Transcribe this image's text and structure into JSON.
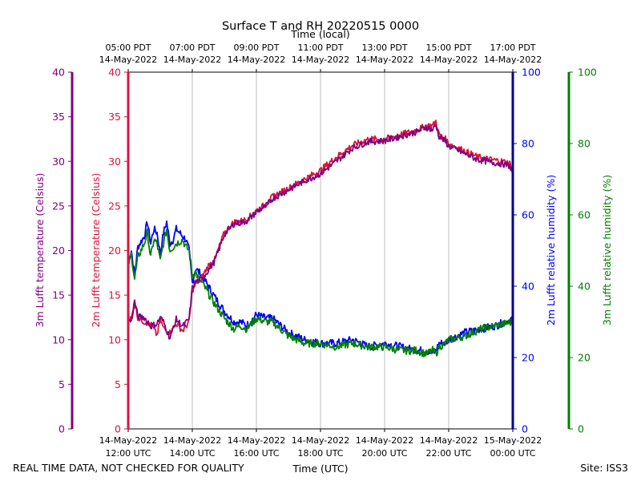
{
  "chart_data": {
    "type": "line",
    "title": "Surface T and RH 20220515 0000",
    "top_axis_label": "Time (local)",
    "bottom_axis_label": "Time (UTC)",
    "x_unit": "hours since 14-May-2022 12:00 UTC",
    "xlim": [
      0,
      12
    ],
    "top_ticks": [
      {
        "x": 0,
        "l1": "05:00 PDT",
        "l2": "14-May-2022"
      },
      {
        "x": 2,
        "l1": "07:00 PDT",
        "l2": "14-May-2022"
      },
      {
        "x": 4,
        "l1": "09:00 PDT",
        "l2": "14-May-2022"
      },
      {
        "x": 6,
        "l1": "11:00 PDT",
        "l2": "14-May-2022"
      },
      {
        "x": 8,
        "l1": "13:00 PDT",
        "l2": "14-May-2022"
      },
      {
        "x": 10,
        "l1": "15:00 PDT",
        "l2": "14-May-2022"
      },
      {
        "x": 12,
        "l1": "17:00 PDT",
        "l2": "14-May-2022"
      }
    ],
    "bottom_ticks": [
      {
        "x": 0,
        "l1": "14-May-2022",
        "l2": "12:00 UTC"
      },
      {
        "x": 2,
        "l1": "14-May-2022",
        "l2": "14:00 UTC"
      },
      {
        "x": 4,
        "l1": "14-May-2022",
        "l2": "16:00 UTC"
      },
      {
        "x": 6,
        "l1": "14-May-2022",
        "l2": "18:00 UTC"
      },
      {
        "x": 8,
        "l1": "14-May-2022",
        "l2": "20:00 UTC"
      },
      {
        "x": 10,
        "l1": "14-May-2022",
        "l2": "22:00 UTC"
      },
      {
        "x": 12,
        "l1": "15-May-2022",
        "l2": "00:00 UTC"
      }
    ],
    "axes": {
      "t3m": {
        "label": "3m Lufft temperature (Celsius)",
        "color": "#800080",
        "ylim": [
          0,
          40
        ],
        "ticks": [
          "0",
          "5",
          "10",
          "15",
          "20",
          "25",
          "30",
          "35",
          "40"
        ]
      },
      "t2m": {
        "label": "2m Lufft temperature (Celsius)",
        "color": "#dc143c",
        "ylim": [
          0,
          40
        ],
        "ticks": [
          "0",
          "5",
          "10",
          "15",
          "20",
          "25",
          "30",
          "35",
          "40"
        ]
      },
      "rh2m": {
        "label": "2m Lufft relative humidity (%)",
        "color": "#0000ff",
        "ylim": [
          0,
          100
        ],
        "ticks": [
          "0",
          "20",
          "40",
          "60",
          "80",
          "100"
        ]
      },
      "rh3m": {
        "label": "3m Lufft relative humidity (%)",
        "color": "#008000",
        "ylim": [
          0,
          100
        ],
        "ticks": [
          "0",
          "20",
          "40",
          "60",
          "80",
          "100"
        ]
      }
    },
    "series": [
      {
        "name": "2m Lufft temperature",
        "axis": "t2m",
        "color": "#dc143c",
        "x": [
          0,
          0.1,
          0.2,
          0.3,
          0.5,
          0.7,
          0.9,
          1.0,
          1.1,
          1.3,
          1.5,
          1.7,
          1.8,
          1.9,
          2.0,
          2.1,
          2.3,
          2.5,
          2.7,
          3.0,
          3.3,
          3.5,
          3.7,
          4.0,
          4.3,
          4.5,
          5.0,
          5.5,
          6.0,
          6.5,
          7.0,
          7.5,
          8.0,
          8.5,
          9.0,
          9.3,
          9.5,
          9.6,
          9.7,
          9.9,
          10.0,
          10.3,
          10.6,
          10.9,
          11.3,
          11.7,
          11.9,
          12.0
        ],
        "values": [
          12.5,
          12.3,
          14.2,
          12.5,
          12,
          11.8,
          10.5,
          12.3,
          11.3,
          10.8,
          11.8,
          11,
          11.5,
          12,
          15.5,
          16.2,
          17,
          18.3,
          19,
          22,
          23.2,
          23.3,
          23.5,
          24.5,
          25.2,
          26,
          27,
          28,
          29,
          30.5,
          31.8,
          32.5,
          32.5,
          33,
          33.5,
          34,
          34,
          34.5,
          33,
          32.5,
          32,
          31.5,
          31,
          30.5,
          30.2,
          30,
          29.8,
          28.8
        ]
      },
      {
        "name": "3m Lufft temperature",
        "axis": "t3m",
        "color": "#800080",
        "x": [
          0,
          0.1,
          0.2,
          0.3,
          0.5,
          0.7,
          0.9,
          1.0,
          1.1,
          1.3,
          1.5,
          1.7,
          1.8,
          1.9,
          2.0,
          2.1,
          2.3,
          2.5,
          2.7,
          3.0,
          3.3,
          3.5,
          3.7,
          4.0,
          4.3,
          4.5,
          5.0,
          5.5,
          6.0,
          6.5,
          7.0,
          7.5,
          8.0,
          8.5,
          9.0,
          9.3,
          9.5,
          9.6,
          9.7,
          9.9,
          10.0,
          10.3,
          10.6,
          10.9,
          11.3,
          11.7,
          11.9,
          12.0
        ],
        "values": [
          12.3,
          12,
          14.4,
          12.6,
          12.5,
          11.5,
          11.8,
          12.5,
          12,
          10.2,
          12.3,
          11.5,
          11.9,
          12.3,
          15.8,
          16.5,
          16.8,
          17.8,
          18.8,
          21.8,
          23,
          23.1,
          23.3,
          24.3,
          25,
          25.8,
          26.8,
          27.8,
          28.6,
          30,
          31.5,
          32.2,
          32.3,
          32.8,
          33.3,
          33.8,
          33.5,
          34.1,
          32.8,
          32.2,
          31.7,
          31.2,
          30.7,
          30.2,
          29.9,
          29.7,
          29.5,
          28.6
        ]
      },
      {
        "name": "2m Lufft relative humidity",
        "axis": "rh2m",
        "color": "#0000ff",
        "x": [
          0,
          0.1,
          0.2,
          0.3,
          0.5,
          0.6,
          0.7,
          0.8,
          0.9,
          1.0,
          1.1,
          1.2,
          1.3,
          1.4,
          1.5,
          1.7,
          1.8,
          1.9,
          2.0,
          2.1,
          2.2,
          2.3,
          2.5,
          2.7,
          3.0,
          3.3,
          3.5,
          3.7,
          4.0,
          4.3,
          4.5,
          5.0,
          5.5,
          6.0,
          6.5,
          7.0,
          7.5,
          8.0,
          8.5,
          9.0,
          9.3,
          9.5,
          9.6,
          9.7,
          9.9,
          10.0,
          10.5,
          11.0,
          11.5,
          12.0
        ],
        "values": [
          47,
          50,
          43,
          51,
          54,
          58,
          52,
          56,
          55,
          49,
          55,
          58,
          52,
          53,
          56,
          54,
          53,
          50,
          41,
          45,
          44,
          43,
          40,
          37,
          33,
          30,
          30,
          29,
          32,
          31,
          31,
          27,
          25,
          24,
          24,
          25,
          23,
          24,
          23,
          22,
          22,
          21,
          22,
          24,
          24,
          25,
          27,
          28,
          29,
          31
        ]
      },
      {
        "name": "3m Lufft relative humidity",
        "axis": "rh3m",
        "color": "#008000",
        "x": [
          0,
          0.1,
          0.2,
          0.3,
          0.5,
          0.6,
          0.7,
          0.8,
          0.9,
          1.0,
          1.1,
          1.2,
          1.3,
          1.4,
          1.5,
          1.7,
          1.8,
          1.9,
          2.0,
          2.1,
          2.2,
          2.3,
          2.5,
          2.7,
          3.0,
          3.3,
          3.5,
          3.7,
          4.0,
          4.3,
          4.5,
          5.0,
          5.5,
          6.0,
          6.5,
          7.0,
          7.5,
          8.0,
          8.5,
          9.0,
          9.3,
          9.5,
          9.6,
          9.7,
          9.9,
          10.0,
          10.5,
          11.0,
          11.5,
          12.0
        ],
        "values": [
          46,
          49,
          42,
          48,
          52,
          55,
          48,
          53,
          52,
          47,
          52,
          56,
          50,
          51,
          52,
          53,
          51,
          50,
          43,
          44,
          42,
          41,
          38,
          35,
          31,
          28,
          29,
          28,
          31,
          30,
          30,
          26,
          24,
          24,
          23,
          24,
          23,
          23,
          22,
          22,
          21,
          22,
          21,
          23,
          24,
          25,
          26,
          28,
          29,
          30
        ]
      }
    ]
  },
  "footer": {
    "disclaimer": "REAL TIME DATA, NOT CHECKED FOR QUALITY",
    "site": "Site: ISS3"
  }
}
